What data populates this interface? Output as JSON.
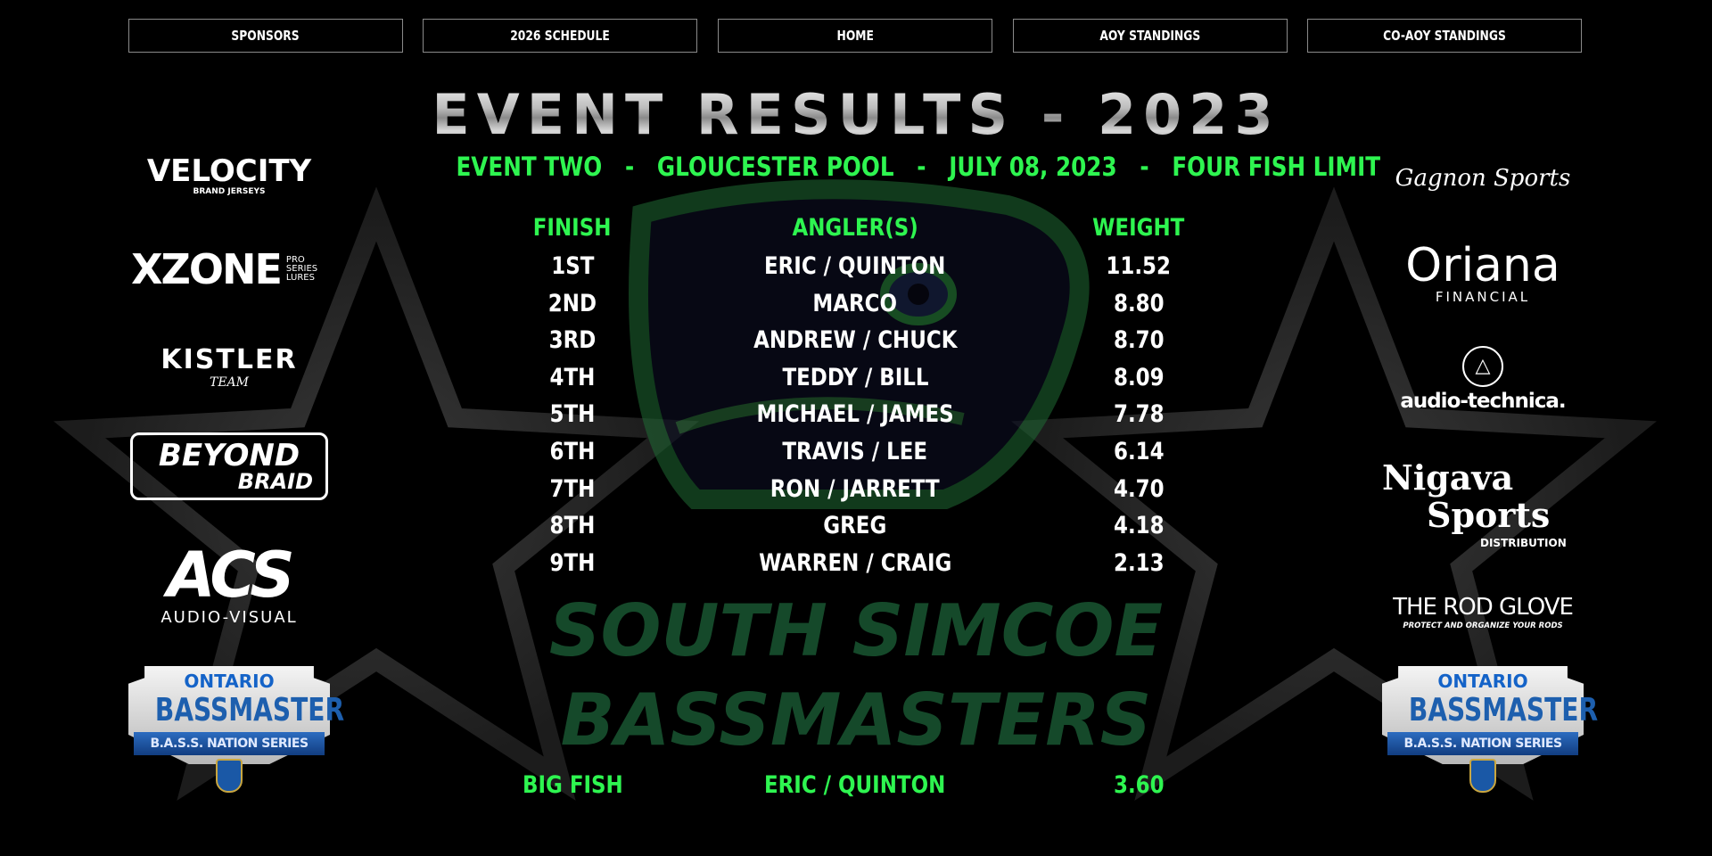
{
  "nav": {
    "items": [
      {
        "label": "SPONSORS"
      },
      {
        "label": "2026 SCHEDULE"
      },
      {
        "label": "HOME"
      },
      {
        "label": "AOY STANDINGS"
      },
      {
        "label": "CO-AOY STANDINGS"
      }
    ]
  },
  "page": {
    "title": "EVENT RESULTS - 2023",
    "subtitle": "EVENT TWO   -   GLOUCESTER POOL   -   JULY 08, 2023   -   FOUR FISH LIMIT"
  },
  "results": {
    "headers": {
      "finish": "FINISH",
      "anglers": "ANGLER(S)",
      "weight": "WEIGHT"
    },
    "rows": [
      {
        "finish": "1ST",
        "anglers": "ERIC / QUINTON",
        "weight": "11.52"
      },
      {
        "finish": "2ND",
        "anglers": "MARCO",
        "weight": "8.80"
      },
      {
        "finish": "3RD",
        "anglers": "ANDREW / CHUCK",
        "weight": "8.70"
      },
      {
        "finish": "4TH",
        "anglers": "TEDDY / BILL",
        "weight": "8.09"
      },
      {
        "finish": "5TH",
        "anglers": "MICHAEL / JAMES",
        "weight": "7.78"
      },
      {
        "finish": "6TH",
        "anglers": "TRAVIS / LEE",
        "weight": "6.14"
      },
      {
        "finish": "7TH",
        "anglers": "RON / JARRETT",
        "weight": "4.70"
      },
      {
        "finish": "8TH",
        "anglers": "GREG",
        "weight": "4.18"
      },
      {
        "finish": "9TH",
        "anglers": "WARREN / CRAIG",
        "weight": "2.13"
      }
    ],
    "big_fish": {
      "label": "BIG FISH",
      "anglers": "ERIC / QUINTON",
      "weight": "3.60"
    }
  },
  "background_logo": {
    "line1": "SOUTH SIMCOE",
    "line2": "BASSMASTERS"
  },
  "sponsors_left": {
    "velocity": {
      "main": "VELOCITY",
      "sub": "BRAND JERSEYS"
    },
    "xzone": {
      "main": "XZONE",
      "sub": "PRO SERIES LURES"
    },
    "kistler": {
      "main": "KISTLER",
      "sub": "TEAM"
    },
    "beyond_braid": {
      "main": "BEYOND",
      "sub": "BRAID"
    },
    "acs": {
      "main": "ACS",
      "sub": "AUDIO-VISUAL"
    },
    "bassmaster": {
      "top": "ONTARIO",
      "main": "BASSMASTER",
      "band": "B.A.S.S. NATION SERIES"
    }
  },
  "sponsors_right": {
    "gagnon": {
      "main": "Gagnon Sports"
    },
    "oriana": {
      "main": "Oriana",
      "sub": "FINANCIAL"
    },
    "audio_technica": {
      "main": "audio-technica."
    },
    "nigava": {
      "main": "Nigava",
      "main2": "Sports",
      "sub": "DISTRIBUTION"
    },
    "rod_glove": {
      "main": "THE ROD GLOVE",
      "sub": "PROTECT AND ORGANIZE YOUR RODS"
    },
    "bassmaster": {
      "top": "ONTARIO",
      "main": "BASSMASTER",
      "band": "B.A.S.S. NATION SERIES"
    }
  },
  "colors": {
    "accent_green": "#2ef550",
    "background": "#000000",
    "star_gray": "#2b2b2b"
  }
}
